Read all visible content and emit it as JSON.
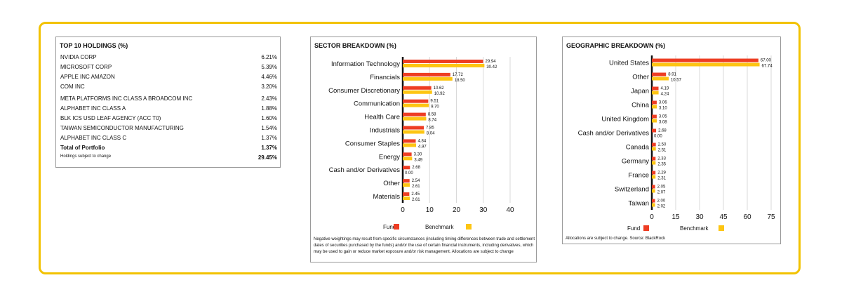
{
  "colors": {
    "fund": "#ee3d23",
    "benchmark": "#fdc513",
    "frame": "#f2c200"
  },
  "holdings": {
    "title": "TOP 10 HOLDINGS (%)",
    "rows": [
      {
        "name": "NVIDIA CORP",
        "value": "6.21%"
      },
      {
        "name": "MICROSOFT CORP",
        "value": "5.39%"
      },
      {
        "name": "APPLE INC  AMAZON",
        "value": "4.46%"
      },
      {
        "name": "COM INC",
        "value": "3.20%"
      },
      {
        "name": "META PLATFORMS INC CLASS A  BROADCOM INC",
        "value": "2.43%"
      },
      {
        "name": "ALPHABET INC CLASS A",
        "value": "1.88%"
      },
      {
        "name": "BLK ICS USD LEAF AGENCY (ACC T0)",
        "value": "1.60%"
      },
      {
        "name": "TAIWAN SEMICONDUCTOR MANUFACTURING",
        "value": "1.54%"
      },
      {
        "name": "ALPHABET INC CLASS C",
        "value": "1.37%"
      }
    ],
    "total": {
      "name": "Total of Portfolio",
      "value": "1.37%"
    },
    "footnote": {
      "name": "Holdings subject to change",
      "value": "29.45%"
    }
  },
  "sector": {
    "note": "Negative weightings may result from specific circumstances (including timing differences  between trade and settlement dates of securities purchased by the funds) and/or the use of  certain financial instruments, including derivatives, which may be used to gain or reduce  market exposure and/or risk management. Allocations are subject to change"
  },
  "geo": {
    "note": "Allocations are subject to change. Source: BlackRock"
  },
  "chart_data": [
    {
      "type": "bar",
      "orientation": "horizontal",
      "title": "SECTOR BREAKDOWN (%)",
      "categories": [
        "Information Technology",
        "Financials",
        "Consumer Discretionary",
        "Communication",
        "Health Care",
        "Industrials",
        "Consumer Staples",
        "Energy",
        "Cash and/or Derivatives",
        "Other",
        "Materials"
      ],
      "series": [
        {
          "name": "Fund",
          "values": [
            29.94,
            17.72,
            10.62,
            9.51,
            8.58,
            7.85,
            4.84,
            3.3,
            2.68,
            2.54,
            2.45
          ],
          "labels": [
            "29.94",
            "17.72",
            "10.62",
            "9.51",
            "8.58",
            "7.85",
            "4.84",
            "3.30",
            "2.68",
            "2.54",
            "2.45"
          ]
        },
        {
          "name": "Benchmark",
          "values": [
            30.42,
            18.5,
            10.92,
            9.7,
            8.74,
            8.04,
            4.97,
            3.49,
            0.0,
            2.61,
            2.61
          ],
          "labels": [
            "30.42",
            "18.50",
            "10.92",
            "9.70",
            "8.74",
            "8.04",
            "4.97",
            "3.49",
            "0.00",
            "2.61",
            "2.61"
          ]
        }
      ],
      "xticks": [
        "0",
        "10",
        "20",
        "30",
        "40"
      ],
      "xlim": [
        0,
        40
      ],
      "grid": true,
      "legend": "bottom"
    },
    {
      "type": "bar",
      "orientation": "horizontal",
      "title": "GEOGRAPHIC BREAKDOWN (%)",
      "categories": [
        "United States",
        "Other",
        "Japan",
        "China",
        "United Kingdom",
        "Cash and/or Derivatives",
        "Canada",
        "Germany",
        "France",
        "Switzerland",
        "Taiwan"
      ],
      "series": [
        {
          "name": "Fund",
          "values": [
            67.0,
            8.91,
            4.19,
            3.06,
            3.05,
            2.68,
            2.5,
            2.33,
            2.29,
            2.05,
            2.0
          ],
          "labels": [
            "67.00",
            "8.91",
            "4.19",
            "3.06",
            "3.05",
            "2.68",
            "2.50",
            "2.33",
            "2.29",
            "2.05",
            "2.00"
          ]
        },
        {
          "name": "Benchmark",
          "values": [
            67.74,
            10.57,
            4.24,
            3.1,
            3.08,
            0.0,
            2.51,
            2.35,
            2.31,
            2.07,
            2.02
          ],
          "labels": [
            "67.74",
            "10.57",
            "4.24",
            "3.10",
            "3.08",
            "0.00",
            "2.51",
            "2.35",
            "2.31",
            "2.07",
            "2.02"
          ]
        }
      ],
      "xticks": [
        "0",
        "15",
        "30",
        "45",
        "60",
        "75"
      ],
      "xlim": [
        0,
        75
      ],
      "grid": true,
      "legend": "bottom"
    }
  ]
}
